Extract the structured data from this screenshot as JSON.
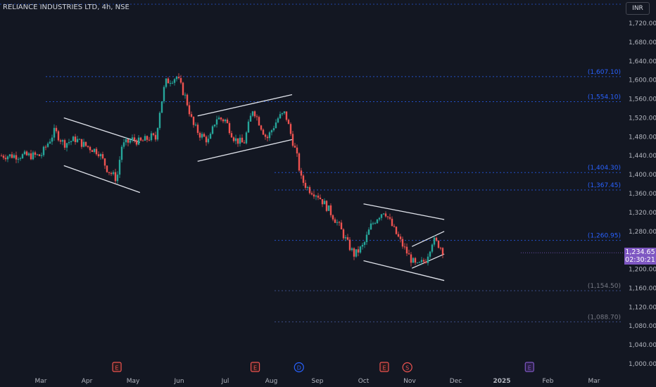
{
  "header": {
    "title": "RELIANCE INDUSTRIES LTD, 4h, NSE",
    "currency": "INR"
  },
  "current_price": {
    "value": "1,234.65",
    "countdown": "02:30:21",
    "color": "#7e57c2"
  },
  "colors": {
    "bg": "#131722",
    "up": "#26a69a",
    "down": "#ef5350",
    "level": "#2962ff",
    "level_text": "#2962ff",
    "trend": "#e0e3eb",
    "event_e": "#ef5350",
    "event_d": "#2962ff",
    "event_last": "#7e57c2"
  },
  "levels": [
    {
      "value": 1607.1,
      "label": "(1,607.10)"
    },
    {
      "value": 1554.1,
      "label": "(1,554.10)"
    },
    {
      "value": 1404.3,
      "label": "(1,404.30)"
    },
    {
      "value": 1367.45,
      "label": "(1,367.45)"
    },
    {
      "value": 1260.95,
      "label": "(1,260.95)"
    },
    {
      "value": 1154.5,
      "label": "(1,154.50)"
    },
    {
      "value": 1088.7,
      "label": "(1,088.70)"
    }
  ],
  "events": [
    {
      "label": "E",
      "x_month_index": 1.65,
      "kind": "e"
    },
    {
      "label": "E",
      "x_month_index": 4.65,
      "kind": "e"
    },
    {
      "label": "D",
      "x_month_index": 5.6,
      "kind": "d"
    },
    {
      "label": "E",
      "x_month_index": 7.45,
      "kind": "e"
    },
    {
      "label": "S",
      "x_month_index": 7.95,
      "kind": "s"
    },
    {
      "label": "E",
      "x_month_index": 10.6,
      "kind": "last"
    }
  ],
  "chart_data": {
    "type": "candlestick",
    "title": "RELIANCE INDUSTRIES LTD, 4h, NSE",
    "x_ticks": [
      "Mar",
      "Apr",
      "May",
      "Jun",
      "Jul",
      "Aug",
      "Sep",
      "Oct",
      "Nov",
      "Dec",
      "2025",
      "Feb",
      "Mar"
    ],
    "y_ticks": [
      1720,
      1680,
      1640,
      1600,
      1560,
      1520,
      1480,
      1440,
      1400,
      1360,
      1320,
      1280,
      1240,
      1200,
      1160,
      1120,
      1080,
      1040,
      1000
    ],
    "y_tick_labels": [
      "1,720.00",
      "1,680.00",
      "1,640.00",
      "1,600.00",
      "1,560.00",
      "1,520.00",
      "1,480.00",
      "1,440.00",
      "1,400.00",
      "1,360.00",
      "1,320.00",
      "1,280.00",
      "1,240.00",
      "1,200.00",
      "1,160.00",
      "1,120.00",
      "1,080.00",
      "1,040.00",
      "1,000.00"
    ],
    "ylim": [
      990,
      1745
    ],
    "path": [
      [
        0,
        1440
      ],
      [
        0.6,
        1492
      ],
      [
        1.0,
        1465
      ],
      [
        1.5,
        1475
      ],
      [
        1.9,
        1462
      ],
      [
        2.5,
        1448
      ],
      [
        2.9,
        1410
      ],
      [
        3.3,
        1390
      ],
      [
        3.5,
        1460
      ],
      [
        4.0,
        1475
      ],
      [
        4.3,
        1468
      ],
      [
        4.8,
        1480
      ],
      [
        5.0,
        1475
      ],
      [
        5.1,
        1520
      ],
      [
        5.4,
        1595
      ],
      [
        5.9,
        1607
      ],
      [
        6.3,
        1560
      ],
      [
        6.6,
        1505
      ],
      [
        6.9,
        1485
      ],
      [
        7.3,
        1470
      ],
      [
        7.6,
        1520
      ],
      [
        8.0,
        1515
      ],
      [
        8.4,
        1475
      ],
      [
        8.8,
        1465
      ],
      [
        9.2,
        1540
      ],
      [
        9.8,
        1475
      ],
      [
        10.3,
        1520
      ],
      [
        10.6,
        1530
      ],
      [
        10.9,
        1475
      ],
      [
        11.1,
        1440
      ],
      [
        11.3,
        1390
      ],
      [
        11.6,
        1370
      ],
      [
        12.0,
        1358
      ],
      [
        12.5,
        1325
      ],
      [
        12.9,
        1295
      ],
      [
        13.3,
        1255
      ],
      [
        13.6,
        1230
      ],
      [
        14.0,
        1250
      ],
      [
        14.3,
        1290
      ],
      [
        14.6,
        1310
      ],
      [
        14.9,
        1325
      ],
      [
        15.3,
        1285
      ],
      [
        15.7,
        1250
      ],
      [
        16.0,
        1225
      ],
      [
        16.3,
        1205
      ],
      [
        16.7,
        1220
      ],
      [
        17.0,
        1262
      ],
      [
        17.3,
        1250
      ],
      [
        17.5,
        1234.65
      ]
    ],
    "trendlines": [
      {
        "x1": 1.0,
        "y1": 1520,
        "x2": 4.3,
        "y2": 1468
      },
      {
        "x1": 1.0,
        "y1": 1419,
        "x2": 4.3,
        "y2": 1362
      },
      {
        "x1": 6.8,
        "y1": 1524,
        "x2": 10.9,
        "y2": 1569
      },
      {
        "x1": 6.8,
        "y1": 1428,
        "x2": 10.9,
        "y2": 1474
      },
      {
        "x1": 14.0,
        "y1": 1338,
        "x2": 17.5,
        "y2": 1305
      },
      {
        "x1": 14.0,
        "y1": 1218,
        "x2": 17.5,
        "y2": 1176
      },
      {
        "x1": 16.1,
        "y1": 1248,
        "x2": 17.5,
        "y2": 1280
      },
      {
        "x1": 16.1,
        "y1": 1202,
        "x2": 17.5,
        "y2": 1232
      }
    ]
  }
}
